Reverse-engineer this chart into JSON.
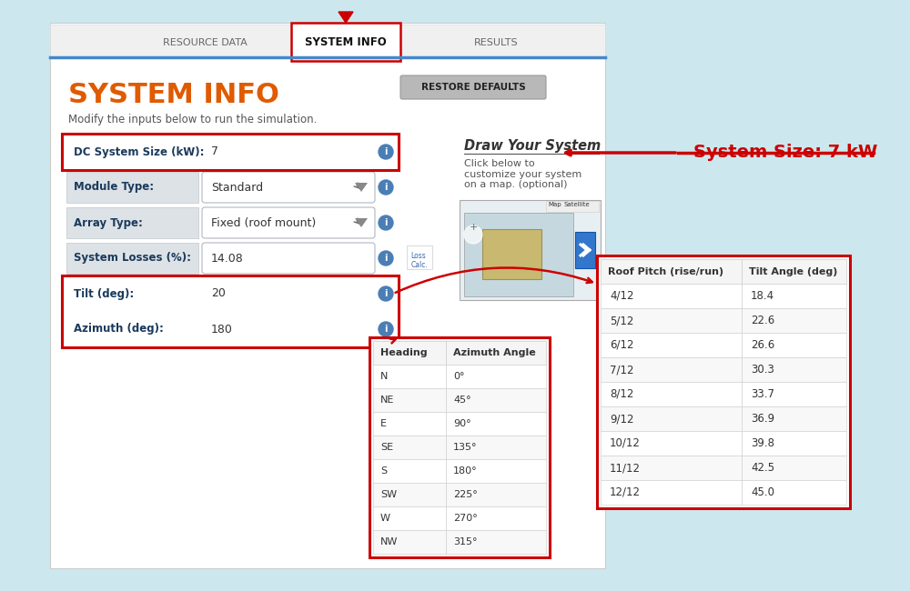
{
  "bg_color": "#cce8ee",
  "white_panel_bg": "#f8f9fa",
  "tab_bg": "#e8e8e8",
  "tabs": [
    "RESOURCE DATA",
    "SYSTEM INFO",
    "RESULTS"
  ],
  "title": "SYSTEM INFO",
  "subtitle": "Modify the inputs below to run the simulation.",
  "title_color": "#e05a00",
  "form_fields": [
    {
      "label": "DC System Size (kW):",
      "value": "7",
      "group": "dc"
    },
    {
      "label": "Module Type:",
      "value": "Standard",
      "group": "none"
    },
    {
      "label": "Array Type:",
      "value": "Fixed (roof mount)",
      "group": "none"
    },
    {
      "label": "System Losses (%):",
      "value": "14.08",
      "group": "none"
    },
    {
      "label": "Tilt (deg):",
      "value": "20",
      "group": "tilt"
    },
    {
      "label": "Azimuth (deg):",
      "value": "180",
      "group": "tilt"
    }
  ],
  "draw_system_title": "Draw Your System",
  "draw_system_text": "Click below to\ncustomize your system\non a map. (optional)",
  "restore_btn_text": "RESTORE DEFAULTS",
  "system_size_label": "System Size: 7 kW",
  "azimuth_table_headers": [
    "Heading",
    "Azimuth Angle"
  ],
  "azimuth_table_rows": [
    [
      "N",
      "0°"
    ],
    [
      "NE",
      "45°"
    ],
    [
      "E",
      "90°"
    ],
    [
      "SE",
      "135°"
    ],
    [
      "S",
      "180°"
    ],
    [
      "SW",
      "225°"
    ],
    [
      "W",
      "270°"
    ],
    [
      "NW",
      "315°"
    ]
  ],
  "roof_table_headers": [
    "Roof Pitch (rise/run)",
    "Tilt Angle (deg)"
  ],
  "roof_table_rows": [
    [
      "4/12",
      "18.4"
    ],
    [
      "5/12",
      "22.6"
    ],
    [
      "6/12",
      "26.6"
    ],
    [
      "7/12",
      "30.3"
    ],
    [
      "8/12",
      "33.7"
    ],
    [
      "9/12",
      "36.9"
    ],
    [
      "10/12",
      "39.8"
    ],
    [
      "11/12",
      "42.5"
    ],
    [
      "12/12",
      "45.0"
    ]
  ],
  "red_color": "#cc0000"
}
